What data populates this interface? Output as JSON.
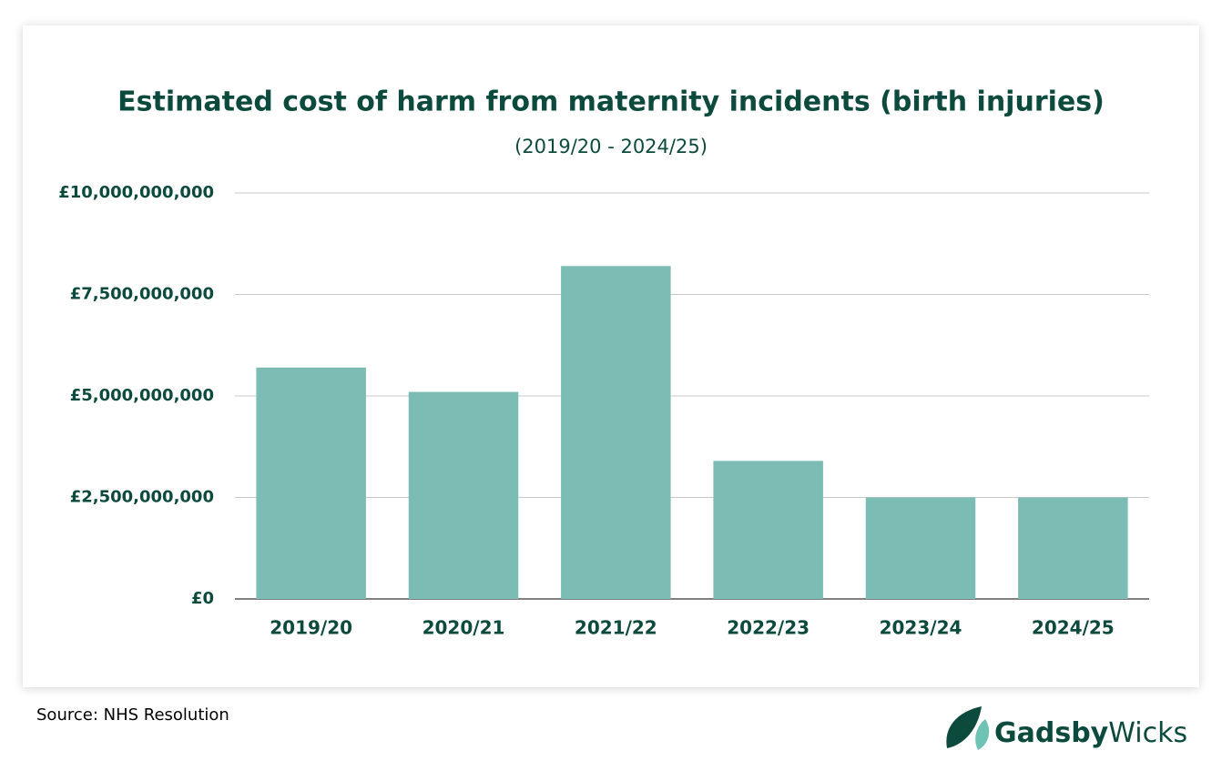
{
  "chart_data": {
    "type": "bar",
    "title": "Estimated cost of harm from maternity incidents (birth injuries)",
    "subtitle": "(2019/20 - 2024/25)",
    "categories": [
      "2019/20",
      "2020/21",
      "2021/22",
      "2022/23",
      "2023/24",
      "2024/25"
    ],
    "values": [
      5700000000,
      5100000000,
      8200000000,
      3400000000,
      2500000000,
      2500000000
    ],
    "color": "#7bbcb4",
    "ylim": [
      0,
      10000000000
    ],
    "yticks": [
      0,
      {
        "value": 2500000000,
        "label": "£2,500,000,000"
      },
      {
        "value": 5000000000,
        "label": "£5,000,000,000"
      },
      {
        "value": 7500000000,
        "label": "£7,500,000,000"
      },
      {
        "value": 10000000000,
        "label": "£10,000,000,000"
      }
    ],
    "zero_label": "£0",
    "grid": true
  },
  "source": "Source: NHS Resolution",
  "logo": {
    "bold": "Gadsby",
    "regular": "Wicks"
  }
}
